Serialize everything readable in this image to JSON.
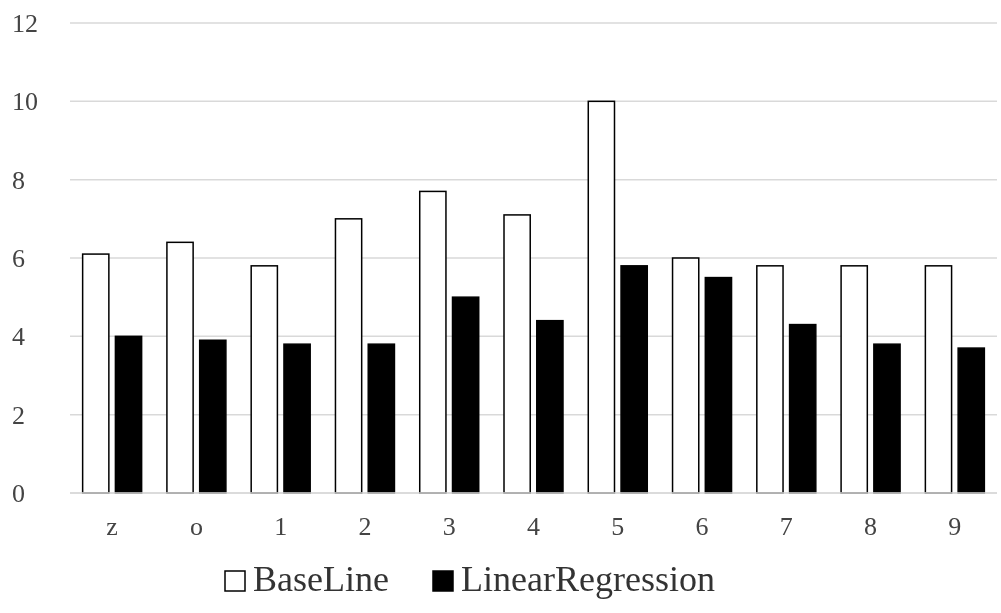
{
  "chart_data": {
    "type": "bar",
    "categories": [
      "z",
      "o",
      "1",
      "2",
      "3",
      "4",
      "5",
      "6",
      "7",
      "8",
      "9"
    ],
    "series": [
      {
        "name": "BaseLine",
        "color": "#ffffff",
        "values": [
          6.1,
          6.4,
          5.8,
          7.0,
          7.7,
          7.1,
          10.0,
          6.0,
          5.8,
          5.8,
          5.8
        ]
      },
      {
        "name": "LinearRegression",
        "color": "#000000",
        "values": [
          4.0,
          3.9,
          3.8,
          3.8,
          5.0,
          4.4,
          5.8,
          5.5,
          4.3,
          3.8,
          3.7
        ]
      }
    ],
    "ylim": [
      0,
      12
    ],
    "yticks": [
      0,
      2,
      4,
      6,
      8,
      10,
      12
    ],
    "grid": "y",
    "legend": "bottom"
  }
}
